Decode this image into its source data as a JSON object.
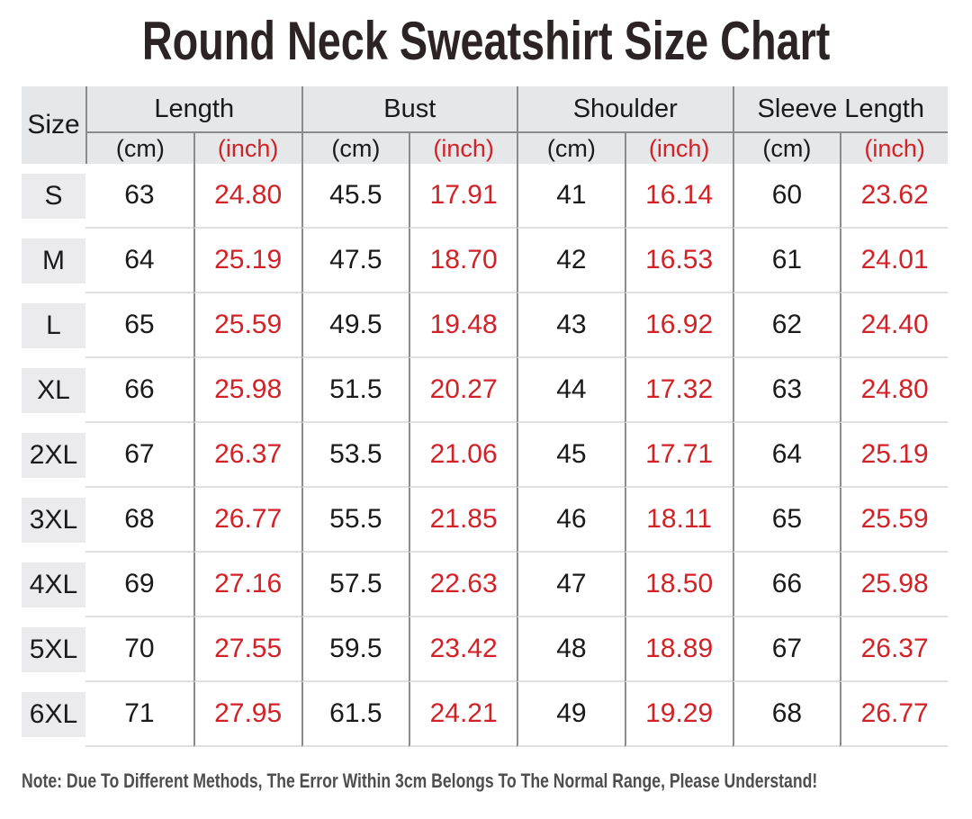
{
  "title": "Round Neck Sweatshirt Size Chart",
  "note": "Note: Due To Different Methods, The Error Within 3cm Belongs To The Normal Range, Please Understand!",
  "chart_data": {
    "type": "table",
    "title": "Round Neck Sweatshirt Size Chart",
    "size_header": "Size",
    "column_groups": [
      "Length",
      "Bust",
      "Shoulder",
      "Sleeve Length"
    ],
    "unit_cm": "(cm)",
    "unit_inch": "(inch)",
    "rows": [
      {
        "size": "S",
        "length_cm": "63",
        "length_in": "24.80",
        "bust_cm": "45.5",
        "bust_in": "17.91",
        "shoulder_cm": "41",
        "shoulder_in": "16.14",
        "sleeve_cm": "60",
        "sleeve_in": "23.62"
      },
      {
        "size": "M",
        "length_cm": "64",
        "length_in": "25.19",
        "bust_cm": "47.5",
        "bust_in": "18.70",
        "shoulder_cm": "42",
        "shoulder_in": "16.53",
        "sleeve_cm": "61",
        "sleeve_in": "24.01"
      },
      {
        "size": "L",
        "length_cm": "65",
        "length_in": "25.59",
        "bust_cm": "49.5",
        "bust_in": "19.48",
        "shoulder_cm": "43",
        "shoulder_in": "16.92",
        "sleeve_cm": "62",
        "sleeve_in": "24.40"
      },
      {
        "size": "XL",
        "length_cm": "66",
        "length_in": "25.98",
        "bust_cm": "51.5",
        "bust_in": "20.27",
        "shoulder_cm": "44",
        "shoulder_in": "17.32",
        "sleeve_cm": "63",
        "sleeve_in": "24.80"
      },
      {
        "size": "2XL",
        "length_cm": "67",
        "length_in": "26.37",
        "bust_cm": "53.5",
        "bust_in": "21.06",
        "shoulder_cm": "45",
        "shoulder_in": "17.71",
        "sleeve_cm": "64",
        "sleeve_in": "25.19"
      },
      {
        "size": "3XL",
        "length_cm": "68",
        "length_in": "26.77",
        "bust_cm": "55.5",
        "bust_in": "21.85",
        "shoulder_cm": "46",
        "shoulder_in": "18.11",
        "sleeve_cm": "65",
        "sleeve_in": "25.59"
      },
      {
        "size": "4XL",
        "length_cm": "69",
        "length_in": "27.16",
        "bust_cm": "57.5",
        "bust_in": "22.63",
        "shoulder_cm": "47",
        "shoulder_in": "18.50",
        "sleeve_cm": "66",
        "sleeve_in": "25.98"
      },
      {
        "size": "5XL",
        "length_cm": "70",
        "length_in": "27.55",
        "bust_cm": "59.5",
        "bust_in": "23.42",
        "shoulder_cm": "48",
        "shoulder_in": "18.89",
        "sleeve_cm": "67",
        "sleeve_in": "26.37"
      },
      {
        "size": "6XL",
        "length_cm": "71",
        "length_in": "27.95",
        "bust_cm": "61.5",
        "bust_in": "24.21",
        "shoulder_cm": "49",
        "shoulder_in": "19.29",
        "sleeve_cm": "68",
        "sleeve_in": "26.77"
      }
    ]
  },
  "colors": {
    "accent_red": "#d02227",
    "text_black": "#1a1a1a",
    "header_bg": "#e6e7e9",
    "chip_bg": "#ebebed",
    "line_dark": "#8b8b8b",
    "line_light": "#e0e0e2",
    "title_color": "#2b2324",
    "note_color": "#4e4e4e"
  }
}
